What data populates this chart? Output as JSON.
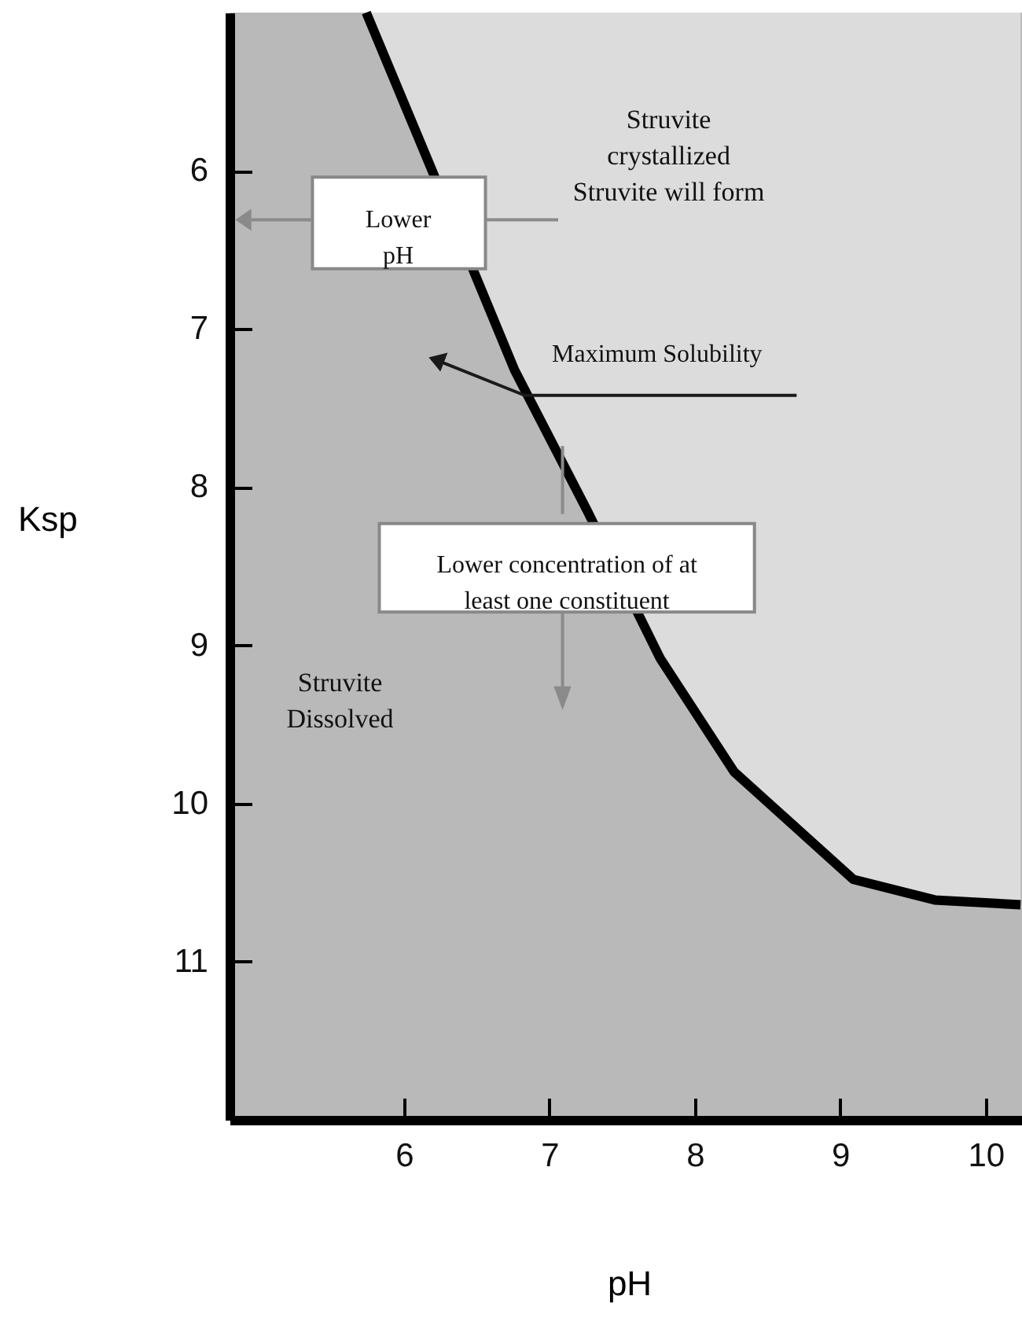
{
  "chart_data": {
    "type": "line",
    "xlabel": "pH",
    "ylabel": "Ksp",
    "x": [
      5.74,
      6.18,
      6.76,
      7.26,
      7.76,
      8.27,
      9.09,
      9.65,
      10.24
    ],
    "series": [
      {
        "type": "area",
        "color": "#dcdcdc",
        "values": [
          5.0,
          5.97,
          7.26,
          8.15,
          9.08,
          9.8,
          10.48,
          10.61,
          10.64
        ]
      }
    ],
    "xlim": [
      4.8,
      10.25
    ],
    "ylim": [
      12,
      5
    ],
    "xticks": [
      6,
      7,
      8,
      9,
      10
    ],
    "yticks": [
      6,
      7,
      8,
      9,
      10,
      11
    ],
    "annotations": [
      "Struvite\ncrystallized\nStruvite will form",
      "Lower\npH",
      {
        "text": "Maximum Solubility",
        "x": 6.83,
        "y": 7.42
      },
      "Lower concentration of at\nleast one constituent",
      "Struvite\nDissolved"
    ]
  }
}
